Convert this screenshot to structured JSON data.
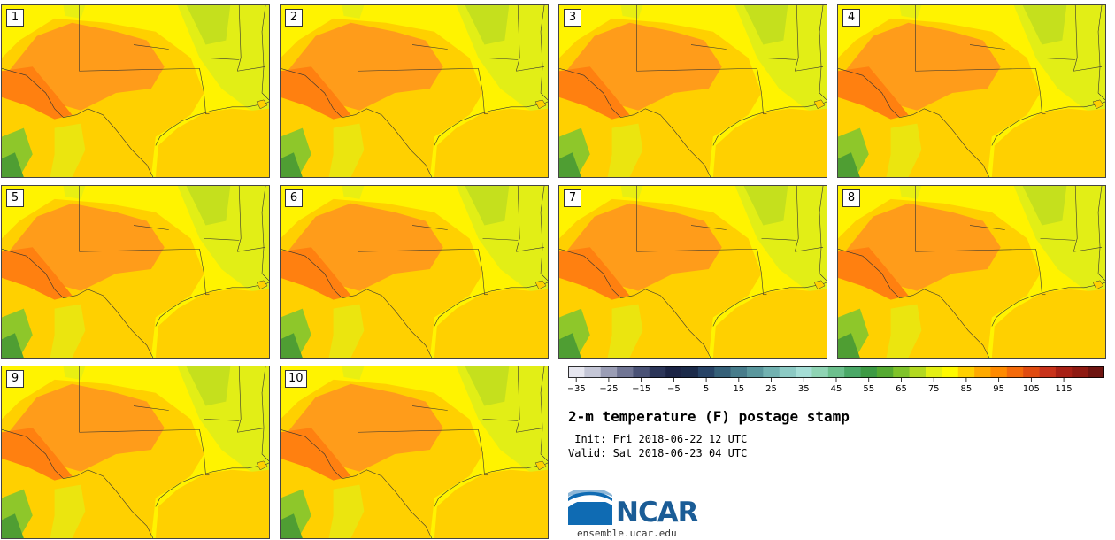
{
  "figure": {
    "title": "2-m temperature (F) postage stamp",
    "init_label": " Init: Fri 2018-06-22 12 UTC",
    "valid_label": "Valid: Sat 2018-06-23 04 UTC"
  },
  "members": [
    "1",
    "2",
    "3",
    "4",
    "5",
    "6",
    "7",
    "8",
    "9",
    "10"
  ],
  "colorbar": {
    "tick_labels": [
      "−35",
      "−25",
      "−15",
      "−5",
      "5",
      "15",
      "25",
      "35",
      "45",
      "55",
      "65",
      "75",
      "85",
      "95",
      "105",
      "115"
    ],
    "colors": [
      "#e6e6ef",
      "#c4c6d6",
      "#9a9db5",
      "#707594",
      "#4a5276",
      "#2c3659",
      "#1b2445",
      "#1c2b4a",
      "#274366",
      "#356078",
      "#477c8b",
      "#5a979d",
      "#72b2b1",
      "#8ccac4",
      "#a5ded6",
      "#8fd4b4",
      "#6cc08d",
      "#4aa867",
      "#3d9a44",
      "#55aa32",
      "#7fc32a",
      "#b3d921",
      "#e3ef13",
      "#fff900",
      "#ffd000",
      "#ffaa00",
      "#ff8a00",
      "#f46a0a",
      "#e04b10",
      "#c8321a",
      "#a82015",
      "#8f1a12",
      "#6e1410"
    ]
  },
  "logo": {
    "name": "NCAR",
    "url_text": "ensemble.ucar.edu"
  },
  "map_colors": {
    "gulf": "#ffd000",
    "base": "#ffd000",
    "hot": "#ff9c1a",
    "hotter": "#ff8010",
    "warm": "#fff300",
    "mild": "#e2ee16",
    "green": "#8ec72a",
    "forest": "#4f9e33",
    "border": "#333333"
  }
}
